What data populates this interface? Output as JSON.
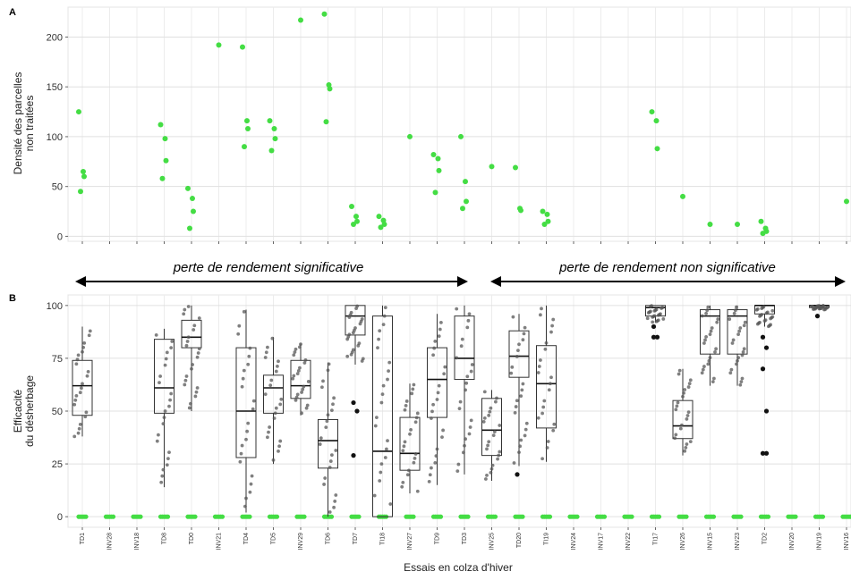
{
  "chart_data": [
    {
      "panel": "A",
      "type": "scatter",
      "ylabel": [
        "Densité des parcelles",
        "non traitées"
      ],
      "ylim": [
        -5,
        230
      ],
      "yticks": [
        0,
        50,
        100,
        150,
        200
      ],
      "grid": true,
      "colors": {
        "points": "#44dd44"
      },
      "points": [
        {
          "trial": "TD1",
          "values": [
            125,
            65,
            60,
            45
          ]
        },
        {
          "trial": "TD8",
          "values": [
            112,
            98,
            76,
            58
          ]
        },
        {
          "trial": "TD0",
          "values": [
            48,
            38,
            25,
            8
          ]
        },
        {
          "trial": "INV21",
          "values": [
            192
          ]
        },
        {
          "trial": "TD4",
          "values": [
            190,
            116,
            108,
            90
          ]
        },
        {
          "trial": "TD5",
          "values": [
            116,
            108,
            98,
            86
          ]
        },
        {
          "trial": "INV29",
          "values": [
            217
          ]
        },
        {
          "trial": "TD6",
          "values": [
            223,
            152,
            148,
            115
          ]
        },
        {
          "trial": "TD7",
          "values": [
            30,
            20,
            15,
            12
          ]
        },
        {
          "trial": "TI18",
          "values": [
            20,
            16,
            12,
            9
          ]
        },
        {
          "trial": "INV27",
          "values": [
            100
          ]
        },
        {
          "trial": "TD9",
          "values": [
            82,
            78,
            66,
            44
          ]
        },
        {
          "trial": "TD3",
          "values": [
            100,
            55,
            35,
            28
          ]
        },
        {
          "trial": "INV25",
          "values": [
            70
          ]
        },
        {
          "trial": "TD20",
          "values": [
            69,
            28,
            26
          ]
        },
        {
          "trial": "TI19",
          "values": [
            25,
            22,
            15,
            12
          ]
        },
        {
          "trial": "TI17",
          "values": [
            125,
            116,
            88
          ]
        },
        {
          "trial": "INV26",
          "values": [
            40
          ]
        },
        {
          "trial": "INV15",
          "values": [
            12
          ]
        },
        {
          "trial": "INV23",
          "values": [
            12
          ]
        },
        {
          "trial": "TD2",
          "values": [
            15,
            8,
            5,
            3
          ]
        },
        {
          "trial": "INV16",
          "values": [
            35
          ]
        }
      ]
    },
    {
      "panel": "B",
      "type": "box",
      "ylabel": [
        "Efficacité",
        "du désherbage"
      ],
      "xlabel": "Essais en colza d'hiver",
      "ylim": [
        -5,
        105
      ],
      "yticks": [
        0,
        25,
        50,
        75,
        100
      ],
      "grid": true,
      "categories": [
        "TD1",
        "INV28",
        "INV18",
        "TD8",
        "TD0",
        "INV21",
        "TD4",
        "TD5",
        "INV29",
        "TD6",
        "TD7",
        "TI18",
        "INV27",
        "TD9",
        "TD3",
        "INV25",
        "TD20",
        "TI19",
        "INV24",
        "INV17",
        "INV22",
        "TI17",
        "INV26",
        "INV15",
        "INV23",
        "TD2",
        "INV20",
        "INV19",
        "INV16"
      ],
      "boxes": [
        {
          "trial": "TD1",
          "q1": 48,
          "median": 62,
          "q3": 74,
          "min": 38,
          "max": 90
        },
        {
          "trial": "TD8",
          "q1": 49,
          "median": 61,
          "q3": 84,
          "min": 14,
          "max": 89
        },
        {
          "trial": "TD0",
          "q1": 80,
          "median": 85,
          "q3": 93,
          "min": 50,
          "max": 100
        },
        {
          "trial": "TD4",
          "q1": 28,
          "median": 50,
          "q3": 80,
          "min": 2,
          "max": 98
        },
        {
          "trial": "TD5",
          "q1": 49,
          "median": 61,
          "q3": 67,
          "min": 25,
          "max": 85
        },
        {
          "trial": "INV29",
          "q1": 56,
          "median": 62,
          "q3": 74,
          "min": 48,
          "max": 82
        },
        {
          "trial": "TD6",
          "q1": 23,
          "median": 36,
          "q3": 46,
          "min": 0,
          "max": 73
        },
        {
          "trial": "TD7",
          "q1": 86,
          "median": 95,
          "q3": 100,
          "min": 72,
          "max": 100
        },
        {
          "trial": "TI18",
          "q1": 0,
          "median": 31,
          "q3": 95,
          "min": 0,
          "max": 100
        },
        {
          "trial": "INV27",
          "q1": 22,
          "median": 30,
          "q3": 47,
          "min": 11,
          "max": 63
        },
        {
          "trial": "TD9",
          "q1": 47,
          "median": 65,
          "q3": 80,
          "min": 15,
          "max": 96
        },
        {
          "trial": "TD3",
          "q1": 65,
          "median": 75,
          "q3": 95,
          "min": 20,
          "max": 100
        },
        {
          "trial": "INV25",
          "q1": 29,
          "median": 41,
          "q3": 56,
          "min": 17,
          "max": 60
        },
        {
          "trial": "TD20",
          "q1": 66,
          "median": 76,
          "q3": 88,
          "min": 24,
          "max": 96
        },
        {
          "trial": "TI19",
          "q1": 42,
          "median": 63,
          "q3": 81,
          "min": 26,
          "max": 100
        },
        {
          "trial": "TI17",
          "q1": 95,
          "median": 99,
          "q3": 100,
          "min": 92,
          "max": 100
        },
        {
          "trial": "INV26",
          "q1": 37,
          "median": 43,
          "q3": 55,
          "min": 29,
          "max": 70
        },
        {
          "trial": "INV15",
          "q1": 77,
          "median": 95,
          "q3": 98,
          "min": 62,
          "max": 100
        },
        {
          "trial": "INV23",
          "q1": 77,
          "median": 95,
          "q3": 98,
          "min": 62,
          "max": 100
        },
        {
          "trial": "TD2",
          "q1": 96,
          "median": 100,
          "q3": 100,
          "min": 90,
          "max": 100
        },
        {
          "trial": "INV19",
          "q1": 99,
          "median": 100,
          "q3": 100,
          "min": 98,
          "max": 100
        }
      ],
      "outliers": [
        {
          "trial": "TD2",
          "values": [
            85,
            80,
            70,
            50,
            30,
            30
          ]
        },
        {
          "trial": "TD7",
          "values": [
            54,
            50,
            29
          ]
        },
        {
          "trial": "TD20",
          "values": [
            20
          ]
        },
        {
          "trial": "TI17",
          "values": [
            90,
            85,
            85
          ]
        },
        {
          "trial": "INV19",
          "values": [
            95
          ]
        }
      ],
      "zero_points_color": "#44dd44",
      "zero_trials": [
        "TD1",
        "INV28",
        "INV18",
        "TD8",
        "TD0",
        "INV21",
        "TD4",
        "TD5",
        "INV29",
        "TD6",
        "TD7",
        "TI18",
        "INV27",
        "TD9",
        "TD3",
        "INV25",
        "TD20",
        "TI19",
        "INV24",
        "INV17",
        "INV22",
        "TI17",
        "INV26",
        "INV15",
        "INV23",
        "TD2",
        "INV20",
        "INV19",
        "INV16"
      ]
    }
  ],
  "figure": {
    "panel_a_letter": "A",
    "panel_b_letter": "B",
    "arrow_left_label": "perte de rendement significative",
    "arrow_right_label": "perte de rendement non significative",
    "ylabel_a_line1": "Densité des parcelles",
    "ylabel_a_line2": "non traitées",
    "ylabel_b_line1": "Efficacité",
    "ylabel_b_line2": "du désherbage",
    "xlabel": "Essais en colza d'hiver"
  }
}
